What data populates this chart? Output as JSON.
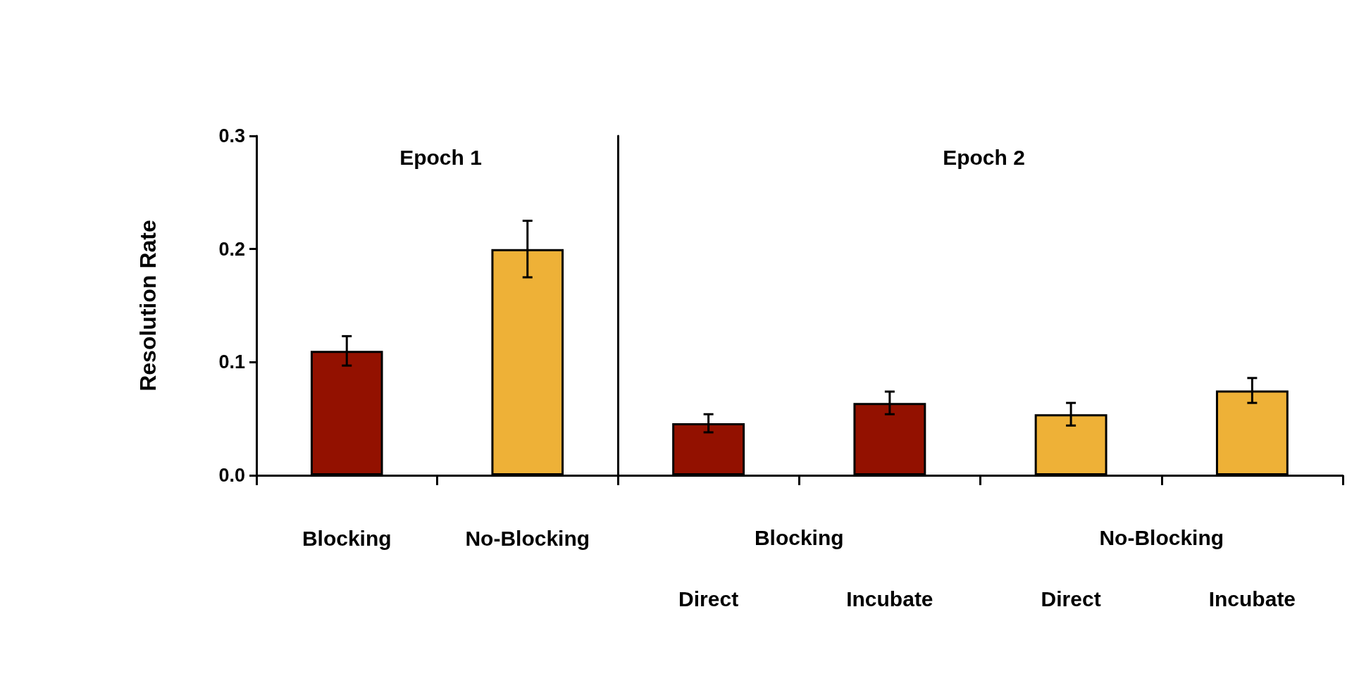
{
  "chart_data": [
    {
      "type": "bar",
      "title": "Epoch 1",
      "ylabel": "Resolution Rate",
      "categories": [
        "Blocking",
        "No-Blocking"
      ],
      "values": [
        0.11,
        0.2
      ],
      "colors": [
        "#931100",
        "#eeb137"
      ],
      "errors": [
        0.013,
        0.025
      ],
      "ylim": [
        0,
        0.3
      ],
      "yticks": [
        {
          "value": 0,
          "label": "0.0"
        },
        0.1,
        0.2,
        0.3
      ],
      "grid": false
    },
    {
      "type": "bar",
      "title": "Epoch 2",
      "categories": [
        "Direct",
        "Incubate",
        "Direct",
        "Incubate"
      ],
      "annotations": [
        "Blocking",
        "No-Blocking"
      ],
      "values": [
        0.046,
        0.064,
        0.054,
        0.075
      ],
      "colors": [
        "#931100",
        "#931100",
        "#eeb137",
        "#eeb137"
      ],
      "errors": [
        0.008,
        0.01,
        0.01,
        0.011
      ],
      "ylim": [
        0,
        0.3
      ],
      "tick_labels": "x",
      "grid": false
    }
  ]
}
